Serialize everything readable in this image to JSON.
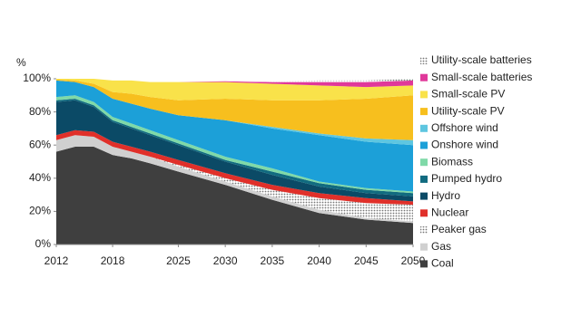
{
  "chart_data": {
    "type": "stacked_area",
    "y_label": "%",
    "x": [
      2012,
      2014,
      2016,
      2018,
      2020,
      2022,
      2025,
      2030,
      2035,
      2040,
      2045,
      2050
    ],
    "xlim": [
      2012,
      2050
    ],
    "xticks": [
      2012,
      2018,
      2025,
      2030,
      2035,
      2040,
      2045,
      2050
    ],
    "ylim": [
      0,
      100
    ],
    "yticks": [
      {
        "value": 0,
        "label": "0%"
      },
      {
        "value": 20,
        "label": "20%"
      },
      {
        "value": 40,
        "label": "40%"
      },
      {
        "value": 60,
        "label": "60%"
      },
      {
        "value": 80,
        "label": "80%"
      },
      {
        "value": 100,
        "label": "100%"
      }
    ],
    "grid": false,
    "legend": "right",
    "series": [
      {
        "name": "Coal",
        "color": "#3f3f3f",
        "values": [
          56,
          59,
          59,
          54,
          52,
          49,
          44,
          36,
          27,
          19,
          15,
          13
        ]
      },
      {
        "name": "Gas",
        "color": "#d0d0d0",
        "values": [
          7,
          7,
          6,
          5,
          4,
          4,
          3,
          2,
          2,
          2,
          1,
          1
        ]
      },
      {
        "name": "Peaker gas",
        "color": "#9a9a9a",
        "pattern": "dots",
        "values": [
          0,
          0,
          0,
          0,
          0,
          0,
          1,
          2,
          4,
          7,
          9,
          10
        ]
      },
      {
        "name": "Nuclear",
        "color": "#e0302a",
        "values": [
          3,
          3,
          3,
          3,
          3,
          3,
          3,
          3,
          3,
          3,
          3,
          2
        ]
      },
      {
        "name": "Hydro",
        "color": "#0b4a66",
        "values": [
          20,
          18,
          15,
          12,
          11,
          10,
          9,
          7,
          6,
          4,
          3,
          3
        ]
      },
      {
        "name": "Pumped hydro",
        "color": "#116b80",
        "values": [
          1,
          1,
          1,
          1,
          1,
          1,
          1,
          1,
          2,
          2,
          2,
          2
        ]
      },
      {
        "name": "Biomass",
        "color": "#7fd9a8",
        "values": [
          2,
          2,
          2,
          2,
          2,
          2,
          2,
          2,
          2,
          1,
          1,
          1
        ]
      },
      {
        "name": "Onshore wind",
        "color": "#1ca0d8",
        "values": [
          10,
          8,
          9,
          11,
          12,
          13,
          15,
          22,
          24,
          28,
          28,
          28
        ]
      },
      {
        "name": "Offshore wind",
        "color": "#5ec6e0",
        "values": [
          0,
          0,
          0,
          0,
          0,
          0,
          0,
          0,
          1,
          1,
          2,
          3
        ]
      },
      {
        "name": "Utility-scale PV",
        "color": "#f7bf1e",
        "values": [
          0.5,
          1,
          2,
          4,
          6,
          7,
          9,
          13,
          16,
          20,
          24,
          27
        ]
      },
      {
        "name": "Small-scale PV",
        "color": "#f9e24a",
        "values": [
          0.5,
          1,
          3,
          7,
          8,
          9,
          11,
          10,
          10,
          9,
          7,
          6
        ]
      },
      {
        "name": "Small-scale batteries",
        "color": "#e0389a",
        "values": [
          0,
          0,
          0,
          0,
          0,
          0,
          0,
          0.5,
          1,
          2,
          3,
          3
        ]
      },
      {
        "name": "Utility-scale batteries",
        "color": "#e86fb0",
        "pattern": "dots",
        "values": [
          0,
          0,
          0,
          0,
          0,
          0,
          0,
          0,
          0.5,
          1,
          1,
          1
        ]
      }
    ]
  }
}
